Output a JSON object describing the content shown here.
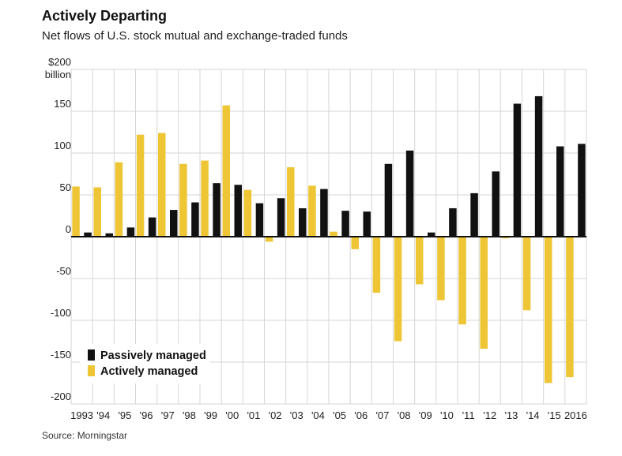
{
  "title": "Actively Departing",
  "subtitle": "Net flows of U.S. stock mutual and exchange-traded funds",
  "source": "Source: Morningstar",
  "chart_data": {
    "type": "bar",
    "title": "Actively Departing",
    "subtitle": "Net flows of U.S. stock mutual and exchange-traded funds",
    "ylabel_unit": "$200 billion",
    "ylim": [
      -200,
      200
    ],
    "yticks": [
      {
        "value": 200,
        "label": "$200"
      },
      {
        "value": 150,
        "label": "150"
      },
      {
        "value": 100,
        "label": "100"
      },
      {
        "value": 50,
        "label": "50"
      },
      {
        "value": 0,
        "label": "0"
      },
      {
        "value": -50,
        "label": "-50"
      },
      {
        "value": -100,
        "label": "-100"
      },
      {
        "value": -150,
        "label": "-150"
      },
      {
        "value": -200,
        "label": "-200"
      }
    ],
    "ytick_unit": "billion",
    "categories": [
      "1993",
      "'94",
      "'95",
      "'96",
      "'97",
      "'98",
      "'99",
      "'00",
      "'01",
      "'02",
      "'03",
      "'04",
      "'05",
      "'06",
      "'07",
      "'08",
      "'09",
      "'10",
      "'11",
      "'12",
      "'13",
      "'14",
      "'15",
      "2016"
    ],
    "series": [
      {
        "name": "Passively managed",
        "color": "#111111",
        "values": [
          5,
          4,
          11,
          23,
          32,
          41,
          64,
          62,
          40,
          46,
          34,
          57,
          31,
          30,
          87,
          103,
          5,
          34,
          52,
          78,
          159,
          168,
          108,
          111
        ]
      },
      {
        "name": "Actively managed",
        "color": "#eec635",
        "values": [
          60,
          59,
          89,
          122,
          124,
          87,
          91,
          157,
          56,
          -6,
          83,
          61,
          6,
          -15,
          -67,
          -125,
          -57,
          -76,
          -105,
          -134,
          -2,
          -88,
          -175,
          -168
        ]
      }
    ],
    "grid": true,
    "legend_position": "bottom-left"
  }
}
